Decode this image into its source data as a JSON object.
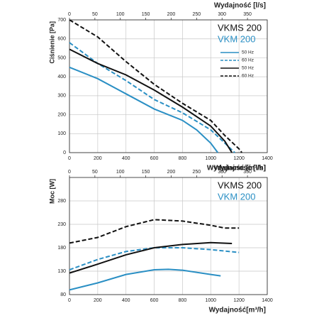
{
  "chart_data": [
    {
      "type": "line",
      "xlabel": "Wydajność [m³/h]",
      "x2label": "Wydajność [l/s]",
      "ylabel": "Ciśnienie [Pa]",
      "xlim": [
        0,
        1400
      ],
      "xticks": [
        0,
        200,
        400,
        600,
        800,
        1000,
        1200,
        1400
      ],
      "x2lim": [
        0,
        388.9
      ],
      "x2ticks": [
        0,
        50,
        100,
        150,
        200,
        250,
        300,
        350
      ],
      "ylim": [
        0,
        700
      ],
      "yticks": [
        0,
        100,
        200,
        300,
        400,
        500,
        600,
        700
      ],
      "grid": true,
      "legend": true,
      "annotations": [
        "VKMS 200",
        "VKM 200"
      ],
      "annotation_colors": [
        "#111111",
        "#2a8fc4"
      ],
      "series": [
        {
          "name": "50 Hz",
          "color": "#2a8fc4",
          "dash": false,
          "x": [
            0,
            200,
            400,
            600,
            800,
            900,
            1000,
            1050
          ],
          "values": [
            450,
            390,
            310,
            230,
            170,
            120,
            50,
            0
          ]
        },
        {
          "name": "60 Hz",
          "color": "#2a8fc4",
          "dash": true,
          "x": [
            0,
            200,
            400,
            600,
            800,
            1000,
            1100,
            1170
          ],
          "values": [
            580,
            470,
            380,
            280,
            210,
            120,
            50,
            0
          ]
        },
        {
          "name": "50 Hz",
          "color": "#111111",
          "dash": false,
          "x": [
            0,
            200,
            400,
            600,
            800,
            1000,
            1100,
            1150
          ],
          "values": [
            545,
            470,
            410,
            330,
            240,
            140,
            60,
            0
          ]
        },
        {
          "name": "60 Hz",
          "color": "#111111",
          "dash": true,
          "x": [
            0,
            200,
            400,
            600,
            800,
            1000,
            1100,
            1200,
            1220
          ],
          "values": [
            700,
            610,
            480,
            360,
            260,
            170,
            90,
            20,
            0
          ]
        }
      ]
    },
    {
      "type": "line",
      "xlabel": "Wydajność[m³/h]",
      "x2label": "Wydajność [l/s]",
      "ylabel": "Moc [W]",
      "xlim": [
        0,
        1400
      ],
      "xticks": [
        0,
        200,
        400,
        600,
        800,
        1000,
        1200,
        1400
      ],
      "x2lim": [
        0,
        388.9
      ],
      "x2ticks": [
        0,
        50,
        100,
        150,
        200,
        250,
        300,
        350
      ],
      "ylim": [
        80,
        330
      ],
      "yticks": [
        80,
        130,
        180,
        230,
        280
      ],
      "grid": true,
      "legend": false,
      "annotations": [
        "VKMS 200",
        "VKM 200"
      ],
      "annotation_colors": [
        "#111111",
        "#2a8fc4"
      ],
      "series": [
        {
          "color": "#2a8fc4",
          "dash": false,
          "x": [
            0,
            200,
            400,
            600,
            700,
            800,
            1000,
            1070
          ],
          "values": [
            90,
            105,
            123,
            133,
            134,
            132,
            123,
            120
          ]
        },
        {
          "color": "#2a8fc4",
          "dash": true,
          "x": [
            0,
            200,
            400,
            600,
            800,
            1000,
            1200
          ],
          "values": [
            133,
            155,
            172,
            180,
            180,
            176,
            170
          ]
        },
        {
          "color": "#111111",
          "dash": false,
          "x": [
            0,
            200,
            400,
            600,
            800,
            1000,
            1150
          ],
          "values": [
            126,
            145,
            165,
            180,
            187,
            191,
            189
          ]
        },
        {
          "color": "#111111",
          "dash": true,
          "x": [
            0,
            200,
            400,
            600,
            800,
            1000,
            1100,
            1200
          ],
          "values": [
            190,
            202,
            225,
            240,
            237,
            228,
            222,
            222
          ]
        }
      ]
    }
  ]
}
